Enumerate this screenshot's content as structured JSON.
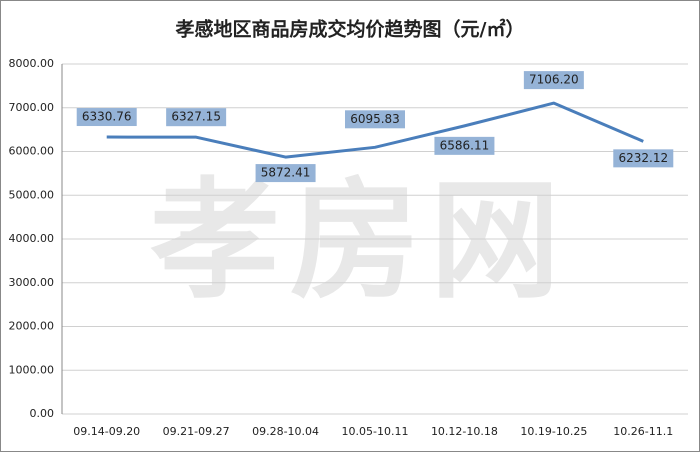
{
  "chart_data": {
    "type": "line",
    "title": "孝感地区商品房成交均价趋势图（元/㎡）",
    "watermark": "孝房网",
    "categories": [
      "09.14-09.20",
      "09.21-09.27",
      "09.28-10.04",
      "10.05-10.11",
      "10.12-10.18",
      "10.19-10.25",
      "10.26-11.1"
    ],
    "values": [
      6330.76,
      6327.15,
      5872.41,
      6095.83,
      6586.11,
      7106.2,
      6232.12
    ],
    "value_labels": [
      "6330.76",
      "6327.15",
      "5872.41",
      "6095.83",
      "6586.11",
      "7106.20",
      "6232.12"
    ],
    "color": "#4a7ebb",
    "label_color": "#95b3d7",
    "ylim": [
      0,
      8000
    ],
    "yticks": [
      {
        "value": 0,
        "label": "0.00"
      },
      {
        "value": 1000,
        "label": "1000.00"
      },
      {
        "value": 2000,
        "label": "2000.00"
      },
      {
        "value": 3000,
        "label": "3000.00"
      },
      {
        "value": 4000,
        "label": "4000.00"
      },
      {
        "value": 5000,
        "label": "5000.00"
      },
      {
        "value": 6000,
        "label": "6000.00"
      },
      {
        "value": 7000,
        "label": "7000.00"
      },
      {
        "value": 8000,
        "label": "8000.00"
      }
    ],
    "grid": true
  }
}
